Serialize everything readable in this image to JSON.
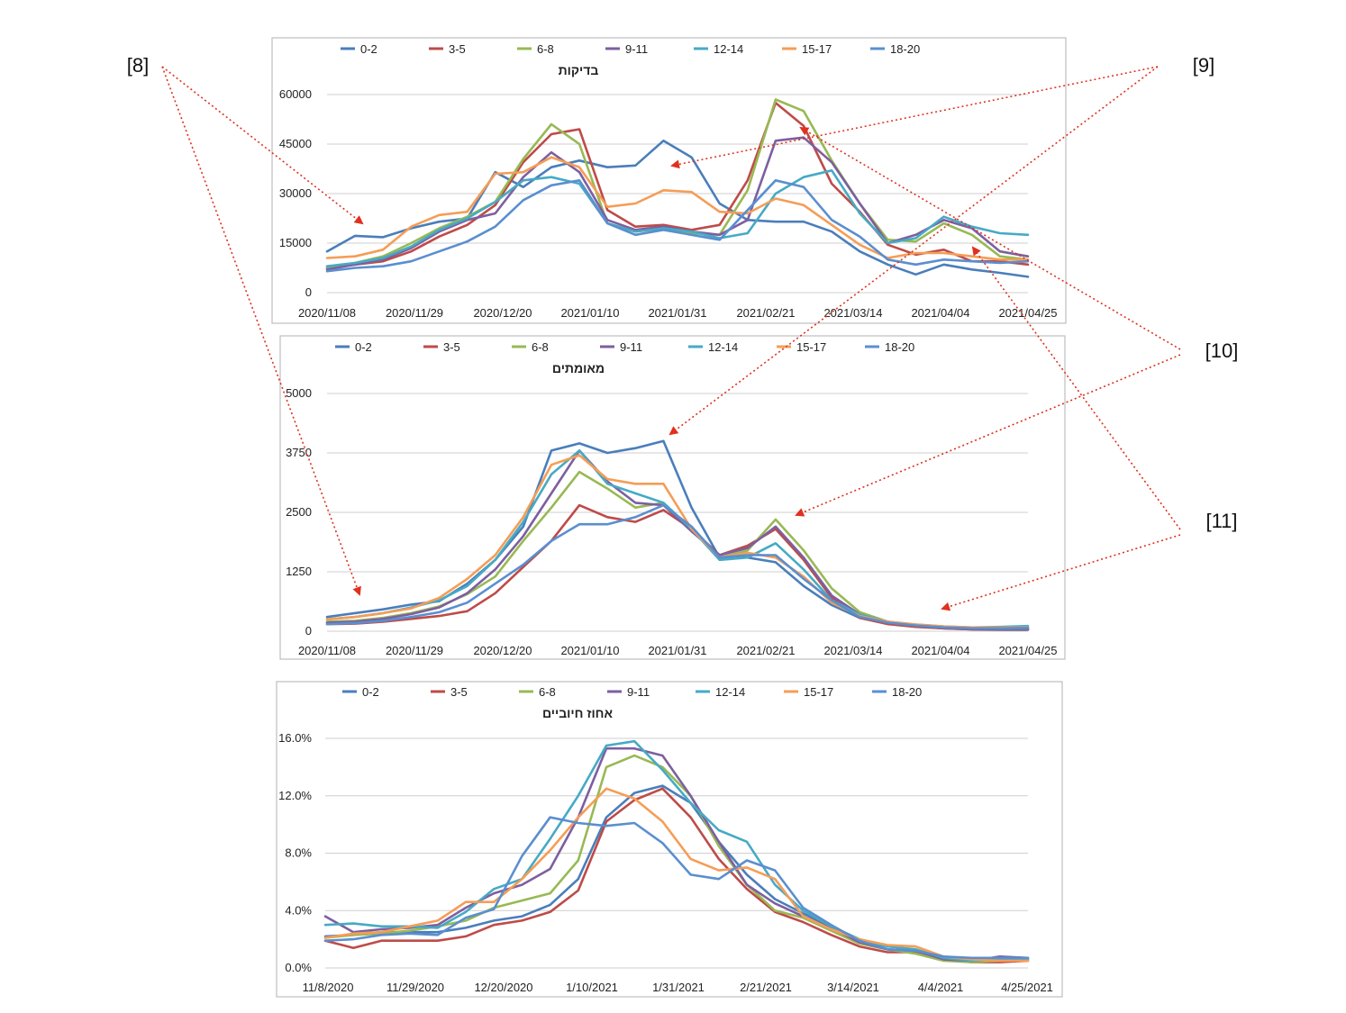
{
  "colors": {
    "0-2": "#4a7ebb",
    "3-5": "#be4b48",
    "6-8": "#98b954",
    "9-11": "#7d5fa0",
    "12-14": "#46aac5",
    "15-17": "#f59d56",
    "18-20": "#5a8fcf",
    "arrow": "#e0301e"
  },
  "callouts": [
    {
      "id": "8",
      "label": "[8]"
    },
    {
      "id": "9",
      "label": "[9]"
    },
    {
      "id": "10",
      "label": "[10]"
    },
    {
      "id": "11",
      "label": "[11]"
    }
  ],
  "chart_data": [
    {
      "type": "line",
      "title": "בדיקות",
      "legend": [
        "0-2",
        "3-5",
        "6-8",
        "9-11",
        "12-14",
        "15-17",
        "18-20"
      ],
      "legend_position": "top",
      "xticks": [
        "2020/11/08",
        "2020/11/29",
        "2020/12/20",
        "2021/01/10",
        "2021/01/31",
        "2021/02/21",
        "2021/03/14",
        "2021/04/04",
        "2021/04/25"
      ],
      "yticks": [
        "60000",
        "45000",
        "30000",
        "15000",
        "0"
      ],
      "ylim": [
        0,
        60000
      ],
      "grid": true,
      "series": [
        {
          "name": "0-2",
          "values": [
            12500,
            17200,
            16800,
            19500,
            21500,
            22500,
            36500,
            32000,
            38000,
            40000,
            38000,
            38500,
            46000,
            41000,
            27000,
            22000,
            21500,
            21500,
            18500,
            12500,
            8500,
            5500,
            8500,
            7000,
            6000,
            4800
          ]
        },
        {
          "name": "3-5",
          "values": [
            7500,
            8500,
            9500,
            12500,
            17000,
            20500,
            26500,
            39500,
            48000,
            49500,
            25000,
            20000,
            20500,
            19000,
            20500,
            34000,
            57500,
            50500,
            33000,
            24500,
            14500,
            11500,
            13000,
            9500,
            9500,
            8500
          ]
        },
        {
          "name": "6-8",
          "values": [
            7500,
            9000,
            11000,
            15000,
            19500,
            23000,
            27500,
            40500,
            51000,
            45000,
            21000,
            18500,
            19500,
            18000,
            17500,
            31000,
            58500,
            55000,
            40000,
            27000,
            16000,
            15500,
            21000,
            17500,
            11000,
            10000
          ]
        },
        {
          "name": "9-11",
          "values": [
            7000,
            8500,
            10000,
            13500,
            18500,
            22000,
            24000,
            35000,
            42500,
            36500,
            22000,
            19000,
            20000,
            18500,
            17500,
            22000,
            46000,
            47000,
            39500,
            27000,
            15000,
            17500,
            22000,
            19500,
            12500,
            11000
          ]
        },
        {
          "name": "12-14",
          "values": [
            8000,
            9000,
            10500,
            14000,
            19000,
            22500,
            27500,
            34000,
            35000,
            33000,
            21000,
            18500,
            19500,
            18500,
            16500,
            18000,
            30000,
            35000,
            37000,
            24000,
            15000,
            16500,
            23000,
            20000,
            18000,
            17500
          ]
        },
        {
          "name": "15-17",
          "values": [
            10500,
            11000,
            13000,
            20000,
            23500,
            24500,
            36000,
            36500,
            41000,
            38000,
            26000,
            27000,
            31000,
            30500,
            24500,
            24000,
            28500,
            26500,
            20500,
            14500,
            10500,
            12000,
            12000,
            11000,
            10000,
            10000
          ]
        },
        {
          "name": "18-20",
          "values": [
            6500,
            7500,
            8000,
            9500,
            12500,
            15500,
            20000,
            28000,
            32500,
            34000,
            21000,
            17500,
            19000,
            17500,
            16000,
            25000,
            34000,
            32000,
            22000,
            17000,
            10000,
            8500,
            10000,
            9500,
            9000,
            9500
          ]
        }
      ]
    },
    {
      "type": "line",
      "title": "מאומתים",
      "legend": [
        "0-2",
        "3-5",
        "6-8",
        "9-11",
        "12-14",
        "15-17",
        "18-20"
      ],
      "legend_position": "top",
      "xticks": [
        "2020/11/08",
        "2020/11/29",
        "2020/12/20",
        "2021/01/10",
        "2021/01/31",
        "2021/02/21",
        "2021/03/14",
        "2021/04/04",
        "2021/04/25"
      ],
      "yticks": [
        "5000",
        "3750",
        "2500",
        "1250",
        "0"
      ],
      "ylim": [
        0,
        5000
      ],
      "grid": true,
      "series": [
        {
          "name": "0-2",
          "values": [
            300,
            380,
            460,
            560,
            630,
            1000,
            1500,
            2200,
            3800,
            3950,
            3750,
            3850,
            4000,
            2600,
            1550,
            1550,
            1450,
            950,
            550,
            280,
            170,
            100,
            60,
            40,
            30,
            30
          ]
        },
        {
          "name": "3-5",
          "values": [
            150,
            160,
            200,
            260,
            320,
            420,
            800,
            1350,
            1900,
            2650,
            2400,
            2300,
            2550,
            2150,
            1600,
            1800,
            2150,
            1500,
            700,
            280,
            150,
            90,
            60,
            40,
            40,
            40
          ]
        },
        {
          "name": "6-8",
          "values": [
            200,
            220,
            280,
            380,
            520,
            780,
            1150,
            1900,
            2600,
            3350,
            3000,
            2600,
            2700,
            2150,
            1550,
            1700,
            2350,
            1700,
            900,
            400,
            200,
            120,
            80,
            60,
            50,
            50
          ]
        },
        {
          "name": "9-11",
          "values": [
            180,
            200,
            260,
            360,
            500,
            800,
            1300,
            2000,
            2900,
            3800,
            3150,
            2700,
            2650,
            2100,
            1600,
            1750,
            2200,
            1550,
            750,
            350,
            180,
            120,
            70,
            50,
            50,
            50
          ]
        },
        {
          "name": "12-14",
          "values": [
            250,
            300,
            380,
            500,
            650,
            950,
            1500,
            2300,
            3300,
            3800,
            3100,
            2900,
            2700,
            2150,
            1500,
            1550,
            1850,
            1300,
            650,
            350,
            200,
            140,
            100,
            80,
            90,
            110
          ]
        },
        {
          "name": "15-17",
          "values": [
            250,
            300,
            380,
            480,
            700,
            1100,
            1600,
            2400,
            3500,
            3700,
            3200,
            3100,
            3100,
            2150,
            1550,
            1650,
            1550,
            1150,
            600,
            320,
            200,
            140,
            100,
            80,
            80,
            80
          ]
        },
        {
          "name": "18-20",
          "values": [
            150,
            170,
            220,
            300,
            400,
            600,
            1000,
            1400,
            1900,
            2250,
            2250,
            2400,
            2650,
            2200,
            1550,
            1600,
            1600,
            1100,
            650,
            300,
            180,
            120,
            80,
            60,
            60,
            70
          ]
        }
      ]
    },
    {
      "type": "line",
      "title": "אחוז חיוביים",
      "legend": [
        "0-2",
        "3-5",
        "6-8",
        "9-11",
        "12-14",
        "15-17",
        "18-20"
      ],
      "legend_position": "top",
      "xticks": [
        "11/8/2020",
        "11/29/2020",
        "12/20/2020",
        "1/10/2021",
        "1/31/2021",
        "2/21/2021",
        "3/14/2021",
        "4/4/2021",
        "4/25/2021"
      ],
      "yticks": [
        "16.0%",
        "12.0%",
        "8.0%",
        "4.0%",
        "0.0%"
      ],
      "ylim": [
        0,
        16
      ],
      "grid": true,
      "series": [
        {
          "name": "0-2",
          "values": [
            2.2,
            2.3,
            2.5,
            2.5,
            2.5,
            2.8,
            3.3,
            3.6,
            4.4,
            6.2,
            10.5,
            12.2,
            12.7,
            11.5,
            8.8,
            6.5,
            4.8,
            3.8,
            2.9,
            2.0,
            1.3,
            1.1,
            0.7,
            0.5,
            0.5,
            0.6
          ]
        },
        {
          "name": "3-5",
          "values": [
            1.9,
            1.4,
            1.9,
            1.9,
            1.9,
            2.2,
            3.0,
            3.3,
            3.9,
            5.4,
            10.2,
            11.7,
            12.5,
            10.5,
            7.6,
            5.5,
            3.9,
            3.2,
            2.3,
            1.5,
            1.1,
            1.1,
            0.6,
            0.4,
            0.4,
            0.5
          ]
        },
        {
          "name": "6-8",
          "values": [
            2.1,
            2.3,
            2.4,
            2.6,
            2.9,
            3.3,
            4.2,
            4.7,
            5.2,
            7.5,
            14.0,
            14.8,
            14.0,
            12.0,
            8.5,
            5.8,
            4.0,
            3.5,
            2.6,
            1.7,
            1.3,
            1.0,
            0.5,
            0.4,
            0.5,
            0.6
          ]
        },
        {
          "name": "9-11",
          "values": [
            3.6,
            2.5,
            2.7,
            2.8,
            3.0,
            4.2,
            5.2,
            5.8,
            6.9,
            10.5,
            15.3,
            15.3,
            14.8,
            12.0,
            8.8,
            5.8,
            4.5,
            3.6,
            2.8,
            1.8,
            1.3,
            1.2,
            0.6,
            0.5,
            0.8,
            0.7
          ]
        },
        {
          "name": "12-14",
          "values": [
            3.0,
            3.1,
            2.9,
            2.9,
            2.8,
            3.9,
            5.5,
            6.2,
            9.0,
            12.0,
            15.5,
            15.8,
            13.8,
            11.5,
            9.6,
            8.8,
            5.8,
            4.0,
            2.9,
            2.0,
            1.5,
            1.3,
            0.7,
            0.5,
            0.6,
            0.6
          ]
        },
        {
          "name": "15-17",
          "values": [
            2.1,
            2.4,
            2.5,
            2.9,
            3.3,
            4.6,
            4.6,
            6.2,
            8.2,
            10.5,
            12.5,
            11.8,
            10.2,
            7.6,
            6.8,
            7.0,
            6.2,
            3.6,
            2.7,
            2.0,
            1.6,
            1.5,
            0.8,
            0.6,
            0.5,
            0.5
          ]
        },
        {
          "name": "18-20",
          "values": [
            1.9,
            2.0,
            2.3,
            2.4,
            2.3,
            3.5,
            4.1,
            7.8,
            10.5,
            10.1,
            9.9,
            10.1,
            8.7,
            6.5,
            6.2,
            7.5,
            6.8,
            4.2,
            3.0,
            1.9,
            1.3,
            1.2,
            0.8,
            0.7,
            0.7,
            0.7
          ]
        }
      ]
    }
  ]
}
